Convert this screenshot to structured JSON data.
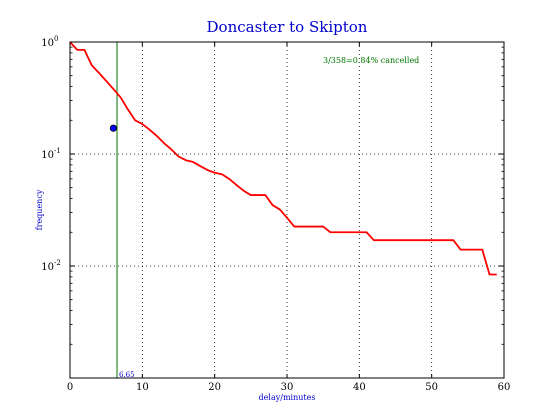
{
  "chart_data": {
    "type": "line",
    "title": "Doncaster to Skipton",
    "xlabel": "delay/minutes",
    "ylabel": "frequency",
    "xlim": [
      0,
      60
    ],
    "ylim": [
      0.001,
      1
    ],
    "yscale": "log",
    "grid": true,
    "x_ticks": [
      "0",
      "10",
      "20",
      "30",
      "40",
      "50",
      "60"
    ],
    "y_ticks": [
      {
        "base": "10",
        "exp": "0"
      },
      {
        "base": "10",
        "exp": "-1"
      },
      {
        "base": "10",
        "exp": "-2"
      }
    ],
    "series": [
      {
        "color": "#ff0000",
        "points": [
          [
            0,
            1.0
          ],
          [
            1,
            0.85
          ],
          [
            2,
            0.85
          ],
          [
            3,
            0.62
          ],
          [
            4,
            0.53
          ],
          [
            5,
            0.45
          ],
          [
            6,
            0.38
          ],
          [
            7,
            0.32
          ],
          [
            8,
            0.25
          ],
          [
            9,
            0.2
          ],
          [
            10,
            0.185
          ],
          [
            11,
            0.165
          ],
          [
            12,
            0.145
          ],
          [
            13,
            0.125
          ],
          [
            14,
            0.11
          ],
          [
            15,
            0.095
          ],
          [
            16,
            0.088
          ],
          [
            17,
            0.085
          ],
          [
            18,
            0.078
          ],
          [
            19,
            0.072
          ],
          [
            20,
            0.068
          ],
          [
            21,
            0.066
          ],
          [
            22,
            0.06
          ],
          [
            23,
            0.053
          ],
          [
            24,
            0.047
          ],
          [
            25,
            0.043
          ],
          [
            26,
            0.043
          ],
          [
            27,
            0.043
          ],
          [
            28,
            0.035
          ],
          [
            29,
            0.032
          ],
          [
            30,
            0.027
          ],
          [
            31,
            0.0225
          ],
          [
            32,
            0.0225
          ],
          [
            35,
            0.0225
          ],
          [
            36,
            0.02
          ],
          [
            41,
            0.02
          ],
          [
            42,
            0.017
          ],
          [
            53,
            0.017
          ],
          [
            54,
            0.014
          ],
          [
            57,
            0.014
          ],
          [
            58,
            0.0084
          ],
          [
            59,
            0.0084
          ]
        ]
      }
    ],
    "marker": {
      "x": 6,
      "y": 0.17,
      "color": "#0000ff"
    },
    "vline": {
      "x": 6.5,
      "color": "#007700",
      "label": "6.65"
    },
    "annotation": {
      "text": "3/358=0.84% cancelled",
      "x": 47,
      "y": 0.75
    }
  }
}
